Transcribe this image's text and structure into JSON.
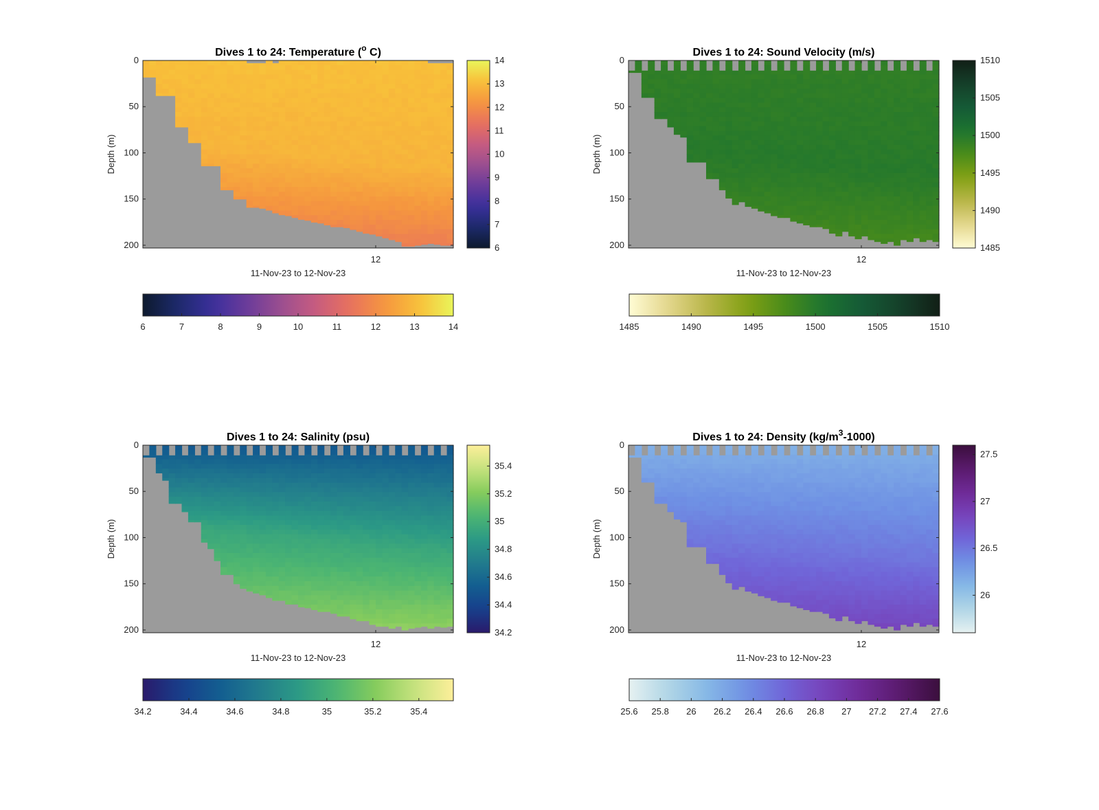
{
  "figure": {
    "background": "#ffffff",
    "land_color": "#9b9b9b"
  },
  "chart_data": [
    {
      "type": "heatmap",
      "title_main": "Dives 1 to 24: Temperature (",
      "title_sup": "o",
      "title_tail": " C)",
      "xlabel": "11-Nov-23 to 12-Nov-23",
      "ylabel": "Depth (m)",
      "xtick_label": "12",
      "yticks": [
        0,
        50,
        100,
        150,
        200
      ],
      "ylim": [
        0,
        203
      ],
      "colormap": "thermal",
      "colorbar_range": [
        6,
        14
      ],
      "colorbar_ticks": [
        "6",
        "7",
        "8",
        "9",
        "10",
        "11",
        "12",
        "13",
        "14"
      ],
      "horizontal_ticks": [
        "6",
        "7",
        "8",
        "9",
        "10",
        "11",
        "12",
        "13",
        "14"
      ],
      "profiles": 48,
      "bottom_depth": [
        18,
        18,
        38,
        38,
        38,
        72,
        72,
        89,
        89,
        114,
        114,
        114,
        140,
        140,
        150,
        150,
        159,
        159,
        160,
        162,
        165,
        167,
        168,
        170,
        172,
        173,
        175,
        176,
        178,
        180,
        180,
        181,
        183,
        185,
        187,
        188,
        190,
        192,
        194,
        196,
        201,
        201,
        200,
        199,
        198,
        199,
        200,
        200
      ],
      "shallow_cutoff": [
        0,
        0,
        0,
        0,
        0,
        0,
        0,
        0,
        0,
        0,
        0,
        0,
        0,
        0,
        0,
        0,
        3,
        3,
        3,
        0,
        3,
        0,
        0,
        0,
        0,
        0,
        0,
        0,
        0,
        0,
        0,
        0,
        0,
        0,
        0,
        0,
        0,
        0,
        0,
        0,
        0,
        0,
        0,
        0,
        3,
        3,
        3,
        3
      ],
      "surface_value": 13.1,
      "mid_value": 12.85,
      "deep_value": 11.6,
      "transition_depth": 105
    },
    {
      "type": "heatmap",
      "title_main": "Dives 1 to 24: Sound Velocity (m/s)",
      "title_sup": "",
      "title_tail": "",
      "xlabel": "11-Nov-23 to 12-Nov-23",
      "ylabel": "Depth (m)",
      "xtick_label": "12",
      "yticks": [
        0,
        50,
        100,
        150,
        200
      ],
      "ylim": [
        0,
        203
      ],
      "colormap": "speed",
      "colorbar_range": [
        1485,
        1510
      ],
      "colorbar_ticks": [
        "1485",
        "1490",
        "1495",
        "1500",
        "1505",
        "1510"
      ],
      "horizontal_ticks": [
        "1485",
        "1490",
        "1495",
        "1500",
        "1505",
        "1510"
      ],
      "profiles": 48,
      "bottom_depth": [
        13,
        13,
        40,
        40,
        63,
        63,
        72,
        80,
        83,
        110,
        110,
        110,
        128,
        128,
        140,
        149,
        156,
        153,
        158,
        160,
        163,
        165,
        168,
        170,
        170,
        174,
        176,
        178,
        180,
        180,
        182,
        187,
        190,
        185,
        190,
        193,
        190,
        194,
        196,
        198,
        196,
        200,
        194,
        196,
        192,
        196,
        194,
        196
      ],
      "shallow_cutoff": [
        11,
        0,
        11,
        0,
        11,
        0,
        11,
        0,
        11,
        0,
        11,
        0,
        11,
        0,
        11,
        0,
        11,
        0,
        11,
        0,
        11,
        0,
        11,
        0,
        11,
        0,
        11,
        0,
        11,
        0,
        11,
        0,
        11,
        0,
        11,
        0,
        11,
        0,
        11,
        0,
        11,
        0,
        11,
        0,
        11,
        0,
        11,
        0
      ],
      "surface_value": 1499.2,
      "mid_value": 1499.9,
      "deep_value": 1497.8,
      "transition_depth": 110
    },
    {
      "type": "heatmap",
      "title_main": "Dives 1 to 24: Salinity (psu)",
      "title_sup": "",
      "title_tail": "",
      "xlabel": "11-Nov-23 to 12-Nov-23",
      "ylabel": "Depth (m)",
      "xtick_label": "12",
      "yticks": [
        0,
        50,
        100,
        150,
        200
      ],
      "ylim": [
        0,
        203
      ],
      "colormap": "haline",
      "colorbar_range": [
        34.2,
        35.55
      ],
      "colorbar_ticks": [
        "34.2",
        "34.4",
        "34.6",
        "34.8",
        "35",
        "35.2",
        "35.4"
      ],
      "horizontal_ticks": [
        "34.2",
        "34.4",
        "34.6",
        "34.8",
        "35",
        "35.2",
        "35.4"
      ],
      "profiles": 48,
      "bottom_depth": [
        13,
        13,
        30,
        38,
        63,
        63,
        72,
        83,
        83,
        105,
        112,
        125,
        140,
        140,
        150,
        155,
        158,
        160,
        162,
        165,
        168,
        168,
        172,
        172,
        175,
        176,
        178,
        180,
        180,
        182,
        185,
        185,
        188,
        190,
        190,
        194,
        196,
        196,
        198,
        196,
        200,
        198,
        197,
        196,
        198,
        196,
        197,
        196
      ],
      "shallow_cutoff": [
        11,
        0,
        11,
        0,
        11,
        0,
        11,
        0,
        11,
        0,
        11,
        0,
        11,
        0,
        11,
        0,
        11,
        0,
        11,
        0,
        11,
        0,
        11,
        0,
        11,
        0,
        11,
        0,
        11,
        0,
        11,
        0,
        11,
        0,
        11,
        0,
        11,
        0,
        11,
        0,
        11,
        0,
        11,
        0,
        11,
        0,
        11,
        0
      ],
      "surface_value": 34.5,
      "mid_value": 34.95,
      "deep_value": 35.25,
      "transition_depth": 100
    },
    {
      "type": "heatmap",
      "title_main": "Dives 1 to 24: Density (kg/m",
      "title_sup": "3",
      "title_tail": "-1000)",
      "xlabel": "11-Nov-23 to 12-Nov-23",
      "ylabel": "Depth (m)",
      "xtick_label": "12",
      "yticks": [
        0,
        50,
        100,
        150,
        200
      ],
      "ylim": [
        0,
        203
      ],
      "colormap": "dense",
      "colorbar_range": [
        25.6,
        27.6
      ],
      "colorbar_ticks": [
        "26",
        "26.5",
        "27",
        "27.5"
      ],
      "colorbar_tick_values": [
        26,
        26.5,
        27,
        27.5
      ],
      "horizontal_ticks": [
        "25.6",
        "25.8",
        "26",
        "26.2",
        "26.4",
        "26.6",
        "26.8",
        "27",
        "27.2",
        "27.4",
        "27.6"
      ],
      "profiles": 48,
      "bottom_depth": [
        13,
        13,
        40,
        40,
        63,
        63,
        72,
        80,
        83,
        110,
        110,
        110,
        128,
        128,
        140,
        149,
        156,
        153,
        158,
        160,
        163,
        165,
        168,
        170,
        170,
        174,
        176,
        178,
        180,
        180,
        182,
        187,
        190,
        185,
        190,
        193,
        190,
        194,
        196,
        198,
        196,
        200,
        194,
        196,
        192,
        196,
        194,
        196
      ],
      "shallow_cutoff": [
        11,
        0,
        11,
        0,
        11,
        0,
        11,
        0,
        11,
        0,
        11,
        0,
        11,
        0,
        11,
        0,
        11,
        0,
        11,
        0,
        11,
        0,
        11,
        0,
        11,
        0,
        11,
        0,
        11,
        0,
        11,
        0,
        11,
        0,
        11,
        0,
        11,
        0,
        11,
        0,
        11,
        0,
        11,
        0,
        11,
        0,
        11,
        0
      ],
      "surface_value": 26.15,
      "mid_value": 26.5,
      "deep_value": 26.85,
      "transition_depth": 110
    }
  ]
}
